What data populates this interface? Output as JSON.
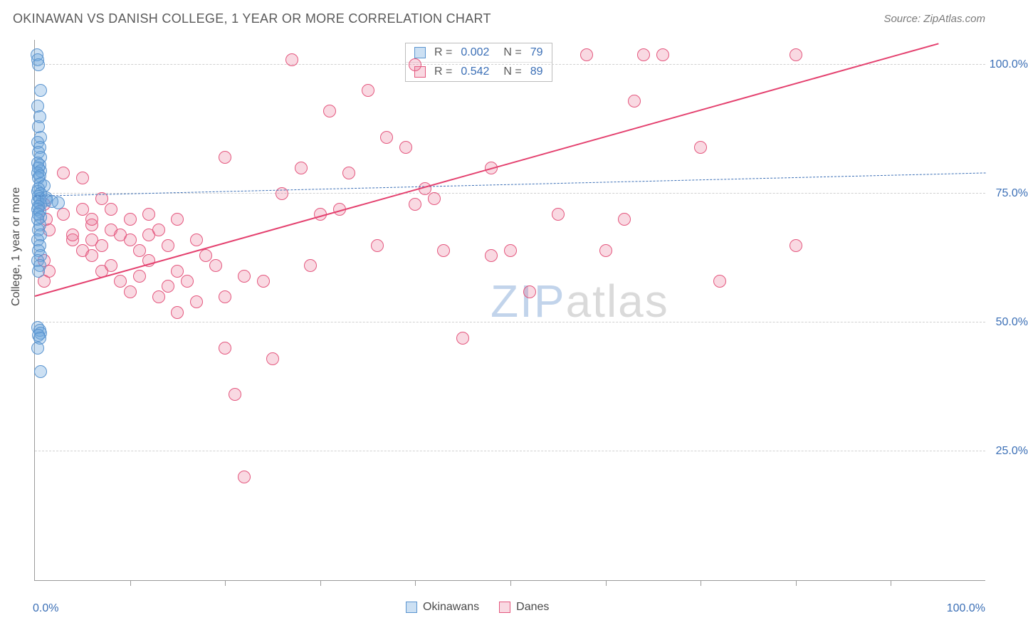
{
  "title": "OKINAWAN VS DANISH COLLEGE, 1 YEAR OR MORE CORRELATION CHART",
  "source_label": "Source: ZipAtlas.com",
  "yaxis_title": "College, 1 year or more",
  "xaxis": {
    "min": 0,
    "max": 100,
    "label_min": "0.0%",
    "label_max": "100.0%",
    "tick_step": 10
  },
  "yaxis": {
    "min": 0,
    "max": 105,
    "gridlines": [
      25,
      50,
      75,
      100
    ],
    "labels": {
      "25": "25.0%",
      "50": "50.0%",
      "75": "75.0%",
      "100": "100.0%"
    }
  },
  "colors": {
    "okinawan_fill": "rgba(110,165,220,0.35)",
    "okinawan_stroke": "#5a94cf",
    "danish_fill": "rgba(235,120,150,0.28)",
    "danish_stroke": "#e4577e",
    "trend_okinawan": "#3b6fb6",
    "trend_danish": "#e4416f",
    "grid": "#d0d0d0",
    "axis": "#9a9a9a",
    "text_axis_value": "#3b6fb6"
  },
  "marker_radius": 9,
  "series": {
    "okinawans": {
      "label": "Okinawans",
      "R": "0.002",
      "N": "79",
      "trend": {
        "x1": 0,
        "y1": 74.5,
        "x2": 100,
        "y2": 79,
        "dashed": true,
        "width": 1.6
      },
      "points": [
        [
          0.2,
          102
        ],
        [
          0.3,
          101
        ],
        [
          0.4,
          100
        ],
        [
          0.6,
          95
        ],
        [
          0.3,
          92
        ],
        [
          0.5,
          90
        ],
        [
          0.4,
          88
        ],
        [
          0.6,
          86
        ],
        [
          0.3,
          85
        ],
        [
          0.5,
          84
        ],
        [
          0.4,
          83
        ],
        [
          0.6,
          82
        ],
        [
          0.3,
          81
        ],
        [
          0.5,
          80.5
        ],
        [
          0.4,
          80
        ],
        [
          0.6,
          79.5
        ],
        [
          0.3,
          79
        ],
        [
          0.5,
          78.5
        ],
        [
          0.4,
          78
        ],
        [
          0.6,
          77
        ],
        [
          1.0,
          76.5
        ],
        [
          0.4,
          76
        ],
        [
          0.3,
          75.5
        ],
        [
          0.6,
          75
        ],
        [
          0.4,
          74.5
        ],
        [
          0.5,
          74
        ],
        [
          1.2,
          73.8
        ],
        [
          0.3,
          73.5
        ],
        [
          2.5,
          73.2
        ],
        [
          0.6,
          73
        ],
        [
          0.4,
          72.5
        ],
        [
          0.3,
          72
        ],
        [
          0.5,
          71.5
        ],
        [
          0.4,
          71
        ],
        [
          0.6,
          70.5
        ],
        [
          0.3,
          70
        ],
        [
          0.5,
          69
        ],
        [
          0.4,
          68
        ],
        [
          0.6,
          67
        ],
        [
          0.3,
          66
        ],
        [
          0.5,
          65
        ],
        [
          0.4,
          64
        ],
        [
          0.6,
          63
        ],
        [
          0.3,
          62
        ],
        [
          0.5,
          61
        ],
        [
          0.4,
          60
        ],
        [
          0.3,
          49
        ],
        [
          0.5,
          48.5
        ],
        [
          0.6,
          48
        ],
        [
          0.4,
          47.5
        ],
        [
          0.5,
          47
        ],
        [
          0.3,
          45
        ],
        [
          0.6,
          40.5
        ],
        [
          1.8,
          73.5
        ],
        [
          1.2,
          74.2
        ]
      ]
    },
    "danes": {
      "label": "Danes",
      "R": "0.542",
      "N": "89",
      "trend": {
        "x1": 0,
        "y1": 55,
        "x2": 95,
        "y2": 104,
        "dashed": false,
        "width": 2.4
      },
      "points": [
        [
          1,
          73
        ],
        [
          1.2,
          70
        ],
        [
          1.5,
          68
        ],
        [
          1,
          62
        ],
        [
          1.5,
          60
        ],
        [
          1,
          58
        ],
        [
          3,
          71
        ],
        [
          3,
          79
        ],
        [
          4,
          66
        ],
        [
          4,
          67
        ],
        [
          5,
          72
        ],
        [
          5,
          64
        ],
        [
          5,
          78
        ],
        [
          6,
          69
        ],
        [
          6,
          63
        ],
        [
          6,
          66
        ],
        [
          6,
          70
        ],
        [
          7,
          65
        ],
        [
          7,
          60
        ],
        [
          7,
          74
        ],
        [
          8,
          68
        ],
        [
          8,
          72
        ],
        [
          8,
          61
        ],
        [
          9,
          67
        ],
        [
          9,
          58
        ],
        [
          10,
          66
        ],
        [
          10,
          70
        ],
        [
          10,
          56
        ],
        [
          11,
          64
        ],
        [
          11,
          59
        ],
        [
          12,
          67
        ],
        [
          12,
          62
        ],
        [
          12,
          71
        ],
        [
          13,
          55
        ],
        [
          13,
          68
        ],
        [
          14,
          57
        ],
        [
          14,
          65
        ],
        [
          15,
          60
        ],
        [
          15,
          70
        ],
        [
          15,
          52
        ],
        [
          16,
          58
        ],
        [
          17,
          66
        ],
        [
          17,
          54
        ],
        [
          18,
          63
        ],
        [
          19,
          61
        ],
        [
          20,
          55
        ],
        [
          20,
          82
        ],
        [
          20,
          45
        ],
        [
          21,
          36
        ],
        [
          22,
          59
        ],
        [
          22,
          20
        ],
        [
          24,
          58
        ],
        [
          25,
          43
        ],
        [
          26,
          75
        ],
        [
          27,
          101
        ],
        [
          28,
          80
        ],
        [
          29,
          61
        ],
        [
          30,
          71
        ],
        [
          31,
          91
        ],
        [
          32,
          72
        ],
        [
          33,
          79
        ],
        [
          35,
          95
        ],
        [
          36,
          65
        ],
        [
          37,
          86
        ],
        [
          39,
          84
        ],
        [
          40,
          73
        ],
        [
          40,
          100
        ],
        [
          41,
          76
        ],
        [
          42,
          74
        ],
        [
          43,
          64
        ],
        [
          45,
          47
        ],
        [
          48,
          80
        ],
        [
          48,
          63
        ],
        [
          50,
          64
        ],
        [
          52,
          56
        ],
        [
          55,
          71
        ],
        [
          58,
          102
        ],
        [
          60,
          64
        ],
        [
          62,
          70
        ],
        [
          63,
          93
        ],
        [
          64,
          102
        ],
        [
          66,
          102
        ],
        [
          70,
          84
        ],
        [
          72,
          58
        ],
        [
          80,
          65
        ],
        [
          80,
          102
        ]
      ]
    }
  },
  "legend": {
    "items": [
      "Okinawans",
      "Danes"
    ]
  },
  "watermark": {
    "left": "ZIP",
    "right": "atlas"
  }
}
